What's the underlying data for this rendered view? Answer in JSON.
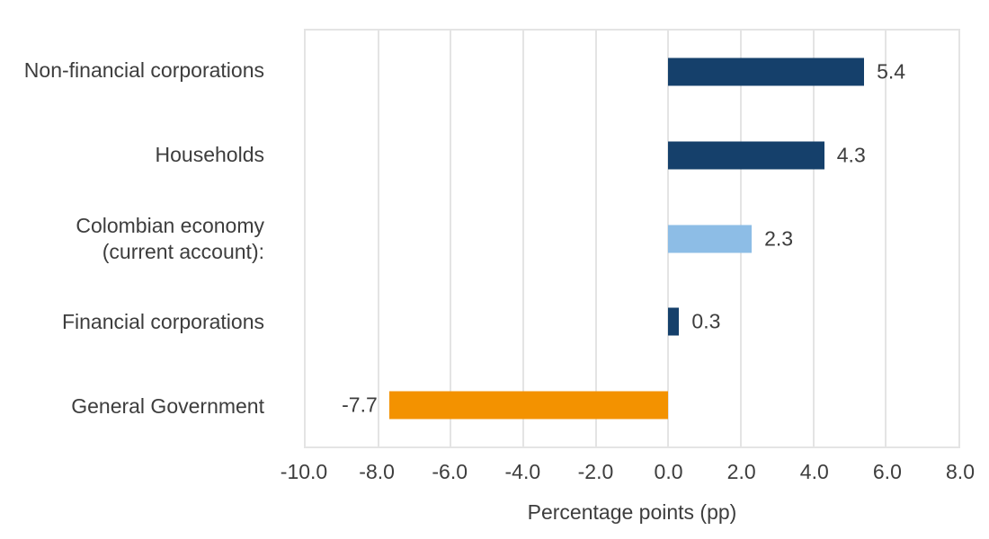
{
  "chart_data": {
    "type": "bar",
    "orientation": "horizontal",
    "title": "",
    "xlabel": "Percentage points (pp)",
    "ylabel": "",
    "xlim": [
      -10,
      8
    ],
    "grid": "vertical",
    "legend": "none",
    "categories": [
      "Non-financial corporations",
      "Households",
      "Colombian economy (current account):",
      "Financial corporations",
      "General Government"
    ],
    "values": [
      5.4,
      4.3,
      2.3,
      0.3,
      -7.7
    ],
    "rows": [
      {
        "label_lines": [
          "Non-financial corporations"
        ],
        "value": 5.4,
        "display": "5.4",
        "color": "dark_blue"
      },
      {
        "label_lines": [
          "Households"
        ],
        "value": 4.3,
        "display": "4.3",
        "color": "dark_blue"
      },
      {
        "label_lines": [
          "Colombian economy",
          "(current account):"
        ],
        "value": 2.3,
        "display": "2.3",
        "color": "light_blue"
      },
      {
        "label_lines": [
          "Financial corporations"
        ],
        "value": 0.3,
        "display": "0.3",
        "color": "dark_blue"
      },
      {
        "label_lines": [
          "General Government"
        ],
        "value": -7.7,
        "display": "-7.7",
        "color": "orange"
      }
    ],
    "xticks": [
      {
        "value": -10,
        "label": "-10.0"
      },
      {
        "value": -8,
        "label": "-8.0"
      },
      {
        "value": -6,
        "label": "-6.0"
      },
      {
        "value": -4,
        "label": "-4.0"
      },
      {
        "value": -2,
        "label": "-2.0"
      },
      {
        "value": 0,
        "label": "0.0"
      },
      {
        "value": 2,
        "label": "2.0"
      },
      {
        "value": 4,
        "label": "4.0"
      },
      {
        "value": 6,
        "label": "6.0"
      },
      {
        "value": 8,
        "label": "8.0"
      }
    ],
    "gridline_values": [
      -8,
      -6,
      -4,
      -2,
      0,
      2,
      4,
      6
    ],
    "palette": {
      "dark_blue": "#15406b",
      "light_blue": "#8dbde6",
      "orange": "#f39200",
      "grid": "#e4e4e4",
      "text": "#3d3d3d"
    }
  }
}
